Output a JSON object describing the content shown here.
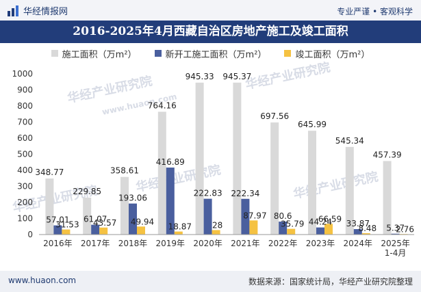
{
  "header": {
    "brand_name": "华经情报网",
    "slogan": "专业严谨 • 客观科学"
  },
  "title": "2016-2025年4月西藏自治区房地产施工及竣工面积",
  "footer": {
    "site": "www.huaon.com",
    "source": "数据来源：国家统计局，华经产业研究院整理"
  },
  "watermark": {
    "cn": "华经产业研究院",
    "en": "www.huaon.com"
  },
  "colors": {
    "series": [
      "#d9d9d9",
      "#4a5f9e",
      "#f5c242"
    ],
    "header_bg": "#223d7a"
  },
  "chart_data": {
    "type": "bar",
    "title": "2016-2025年4月西藏自治区房地产施工及竣工面积",
    "categories": [
      "2016年",
      "2017年",
      "2018年",
      "2019年",
      "2020年",
      "2021年",
      "2022年",
      "2023年",
      "2024年",
      "2025年\n1-4月"
    ],
    "series": [
      {
        "name": "施工面积（万m²）",
        "values": [
          348.77,
          229.85,
          358.61,
          764.16,
          945.33,
          945.37,
          697.56,
          645.99,
          545.34,
          457.39
        ]
      },
      {
        "name": "新开工施工面积（万m²）",
        "values": [
          57.01,
          61.07,
          193.06,
          416.89,
          222.83,
          222.34,
          80.6,
          44.24,
          33.87,
          5.37
        ]
      },
      {
        "name": "竣工面积（万m²）",
        "values": [
          31.53,
          43.57,
          49.94,
          18.87,
          28,
          87.97,
          35.79,
          66.59,
          8.48,
          2.76
        ]
      }
    ],
    "value_labels": [
      [
        "348.77",
        "229.85",
        "358.61",
        "764.16",
        "945.33",
        "945.37",
        "697.56",
        "645.99",
        "545.34",
        "457.39"
      ],
      [
        "57.01",
        "61.07",
        "193.06",
        "416.89",
        "222.83",
        "222.34",
        "80.6",
        "44.24",
        "33.87",
        "5.37"
      ],
      [
        "31.53",
        "43.57",
        "49.94",
        "18.87",
        "28",
        "87.97",
        "35.79",
        "66.59",
        "8.48",
        "2.76"
      ]
    ],
    "yticks": [
      "0",
      "100",
      "200",
      "300",
      "400",
      "500",
      "600",
      "700",
      "800",
      "900",
      "1000"
    ],
    "ylim": [
      0,
      1000
    ],
    "grid": false,
    "legend_position": "top"
  }
}
